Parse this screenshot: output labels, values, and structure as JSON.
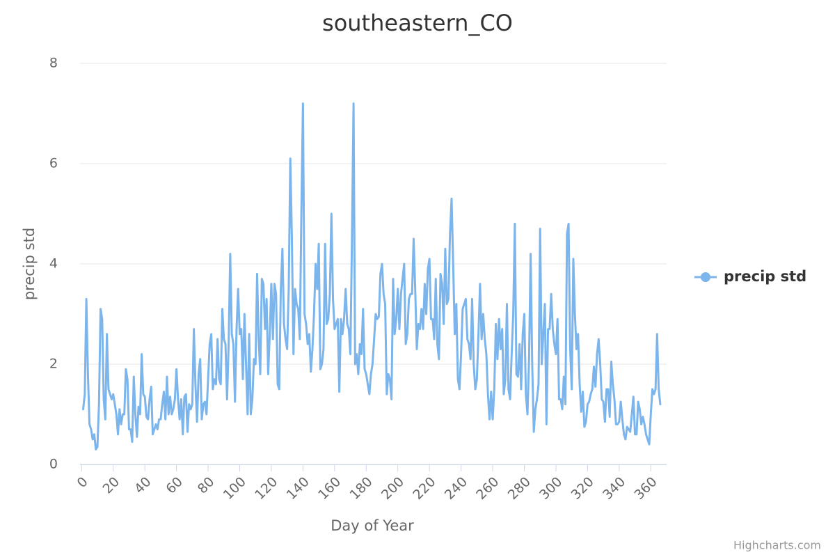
{
  "chart_data": {
    "type": "line",
    "title": "southeastern_CO",
    "x_label": "Day of Year",
    "y_label": "precip std",
    "credits": "Highcharts.com",
    "legend": "right",
    "grid": true,
    "xlim": [
      -1,
      370
    ],
    "ylim": [
      0,
      8
    ],
    "xticks": [
      0,
      20,
      40,
      60,
      80,
      100,
      120,
      140,
      160,
      180,
      200,
      220,
      240,
      260,
      280,
      300,
      320,
      340,
      360
    ],
    "yticks": [
      0,
      2,
      4,
      6,
      8
    ],
    "x": [
      1,
      2,
      3,
      4,
      5,
      6,
      7,
      8,
      9,
      10,
      11,
      12,
      13,
      14,
      15,
      16,
      17,
      18,
      19,
      20,
      21,
      22,
      23,
      24,
      25,
      26,
      27,
      28,
      29,
      30,
      31,
      32,
      33,
      34,
      35,
      36,
      37,
      38,
      39,
      40,
      41,
      42,
      43,
      44,
      45,
      46,
      47,
      48,
      49,
      50,
      51,
      52,
      53,
      54,
      55,
      56,
      57,
      58,
      59,
      60,
      61,
      62,
      63,
      64,
      65,
      66,
      67,
      68,
      69,
      70,
      71,
      72,
      73,
      74,
      75,
      76,
      77,
      78,
      79,
      80,
      81,
      82,
      83,
      84,
      85,
      86,
      87,
      88,
      89,
      90,
      91,
      92,
      93,
      94,
      95,
      96,
      97,
      98,
      99,
      100,
      101,
      102,
      103,
      104,
      105,
      106,
      107,
      108,
      109,
      110,
      111,
      112,
      113,
      114,
      115,
      116,
      117,
      118,
      119,
      120,
      121,
      122,
      123,
      124,
      125,
      126,
      127,
      128,
      129,
      130,
      131,
      132,
      133,
      134,
      135,
      136,
      137,
      138,
      139,
      140,
      141,
      142,
      143,
      144,
      145,
      146,
      147,
      148,
      149,
      150,
      151,
      152,
      153,
      154,
      155,
      156,
      157,
      158,
      159,
      160,
      161,
      162,
      163,
      164,
      165,
      166,
      167,
      168,
      169,
      170,
      171,
      172,
      173,
      174,
      175,
      176,
      177,
      178,
      179,
      180,
      181,
      182,
      183,
      184,
      185,
      186,
      187,
      188,
      189,
      190,
      191,
      192,
      193,
      194,
      195,
      196,
      197,
      198,
      199,
      200,
      201,
      202,
      203,
      204,
      205,
      206,
      207,
      208,
      209,
      210,
      211,
      212,
      213,
      214,
      215,
      216,
      217,
      218,
      219,
      220,
      221,
      222,
      223,
      224,
      225,
      226,
      227,
      228,
      229,
      230,
      231,
      232,
      233,
      234,
      235,
      236,
      237,
      238,
      239,
      240,
      241,
      242,
      243,
      244,
      245,
      246,
      247,
      248,
      249,
      250,
      251,
      252,
      253,
      254,
      255,
      256,
      257,
      258,
      259,
      260,
      261,
      262,
      263,
      264,
      265,
      266,
      267,
      268,
      269,
      270,
      271,
      272,
      273,
      274,
      275,
      276,
      277,
      278,
      279,
      280,
      281,
      282,
      283,
      284,
      285,
      286,
      287,
      288,
      289,
      290,
      291,
      292,
      293,
      294,
      295,
      296,
      297,
      298,
      299,
      300,
      301,
      302,
      303,
      304,
      305,
      306,
      307,
      308,
      309,
      310,
      311,
      312,
      313,
      314,
      315,
      316,
      317,
      318,
      319,
      320,
      321,
      322,
      323,
      324,
      325,
      326,
      327,
      328,
      329,
      330,
      331,
      332,
      333,
      334,
      335,
      336,
      337,
      338,
      339,
      340,
      341,
      342,
      343,
      344,
      345,
      346,
      347,
      348,
      349,
      350,
      351,
      352,
      353,
      354,
      355,
      356,
      357,
      358,
      359,
      360,
      361,
      362,
      363,
      364,
      365,
      366
    ],
    "series": [
      {
        "name": "precip std",
        "color": "#7cb5ec",
        "values": [
          1.1,
          1.4,
          3.3,
          1.8,
          0.8,
          0.7,
          0.5,
          0.6,
          0.3,
          0.35,
          1.2,
          3.1,
          2.9,
          1.3,
          0.9,
          2.6,
          1.5,
          1.4,
          1.3,
          1.4,
          1.2,
          1.0,
          0.6,
          1.1,
          0.8,
          1.0,
          1.0,
          1.9,
          1.7,
          0.7,
          0.7,
          0.45,
          1.75,
          1.0,
          0.55,
          1.15,
          1.0,
          2.2,
          1.4,
          1.35,
          0.95,
          0.9,
          1.3,
          1.55,
          0.6,
          0.7,
          0.8,
          0.7,
          0.9,
          0.9,
          1.2,
          1.45,
          0.9,
          1.75,
          1.0,
          1.35,
          1.0,
          1.1,
          1.3,
          1.9,
          1.3,
          0.9,
          1.3,
          0.6,
          1.35,
          1.4,
          0.65,
          1.2,
          1.1,
          1.2,
          2.7,
          1.6,
          0.85,
          1.8,
          2.1,
          0.9,
          1.2,
          1.25,
          1.0,
          1.7,
          2.4,
          2.6,
          1.5,
          1.7,
          1.6,
          2.5,
          1.7,
          1.6,
          3.1,
          2.5,
          2.4,
          1.3,
          2.4,
          4.2,
          2.6,
          2.4,
          1.25,
          2.7,
          3.5,
          2.6,
          2.7,
          1.7,
          3.0,
          2.0,
          1.0,
          2.6,
          1.0,
          1.3,
          2.1,
          2.0,
          3.8,
          2.5,
          1.8,
          3.7,
          3.6,
          2.7,
          3.3,
          1.8,
          2.6,
          3.6,
          2.5,
          3.6,
          3.4,
          1.6,
          1.5,
          3.5,
          4.3,
          2.8,
          2.5,
          2.3,
          3.5,
          6.1,
          4.5,
          2.2,
          3.5,
          3.2,
          3.1,
          2.5,
          5.0,
          7.2,
          3.0,
          2.8,
          2.4,
          2.6,
          1.85,
          2.3,
          3.0,
          4.0,
          3.5,
          4.4,
          1.9,
          2.0,
          2.3,
          4.4,
          2.8,
          2.9,
          3.4,
          5.0,
          3.3,
          2.7,
          2.8,
          2.9,
          1.45,
          2.9,
          2.6,
          2.9,
          3.5,
          2.8,
          2.7,
          2.2,
          4.5,
          7.2,
          2.0,
          2.2,
          1.8,
          2.4,
          2.2,
          3.1,
          1.9,
          1.8,
          1.6,
          1.4,
          1.8,
          2.0,
          2.5,
          3.0,
          2.9,
          2.95,
          3.8,
          4.0,
          3.4,
          3.2,
          1.4,
          1.8,
          1.7,
          1.3,
          3.7,
          2.6,
          2.9,
          3.5,
          2.7,
          3.4,
          3.7,
          4.0,
          2.4,
          2.6,
          3.3,
          3.4,
          3.4,
          4.5,
          3.5,
          2.3,
          2.8,
          2.7,
          3.1,
          2.7,
          3.6,
          3.0,
          3.9,
          4.1,
          2.9,
          2.9,
          2.5,
          3.7,
          2.4,
          2.1,
          3.8,
          3.6,
          2.8,
          4.3,
          3.2,
          3.3,
          4.6,
          5.3,
          4.0,
          2.6,
          3.2,
          1.7,
          1.5,
          2.2,
          3.1,
          3.2,
          3.3,
          2.5,
          2.4,
          2.1,
          3.3,
          2.0,
          1.5,
          1.7,
          2.6,
          3.6,
          2.5,
          3.0,
          2.5,
          2.2,
          1.4,
          0.9,
          1.45,
          0.9,
          1.5,
          2.8,
          2.1,
          2.9,
          2.3,
          2.7,
          1.4,
          1.7,
          3.2,
          1.5,
          1.3,
          2.2,
          3.0,
          4.8,
          1.8,
          1.75,
          2.4,
          1.5,
          2.6,
          3.0,
          1.4,
          1.0,
          2.1,
          4.2,
          2.0,
          0.65,
          1.1,
          1.3,
          1.6,
          4.7,
          2.0,
          2.6,
          3.2,
          0.8,
          2.7,
          2.7,
          3.4,
          2.7,
          2.4,
          2.2,
          2.9,
          1.3,
          1.3,
          1.1,
          1.75,
          1.2,
          4.6,
          4.8,
          2.3,
          1.5,
          4.1,
          3.0,
          2.3,
          2.6,
          1.6,
          1.05,
          1.45,
          0.75,
          0.85,
          1.2,
          1.25,
          1.4,
          1.5,
          1.95,
          1.55,
          2.2,
          2.5,
          2.0,
          1.3,
          1.25,
          0.85,
          1.5,
          1.5,
          0.95,
          2.05,
          1.6,
          1.3,
          0.8,
          0.8,
          0.85,
          1.25,
          0.9,
          0.6,
          0.5,
          0.75,
          0.7,
          0.65,
          1.0,
          1.35,
          0.6,
          0.6,
          1.25,
          1.1,
          0.8,
          0.95,
          0.8,
          0.6,
          0.5,
          0.4,
          1.0,
          1.5,
          1.4,
          1.5,
          2.6,
          1.5,
          1.2
        ]
      }
    ]
  }
}
